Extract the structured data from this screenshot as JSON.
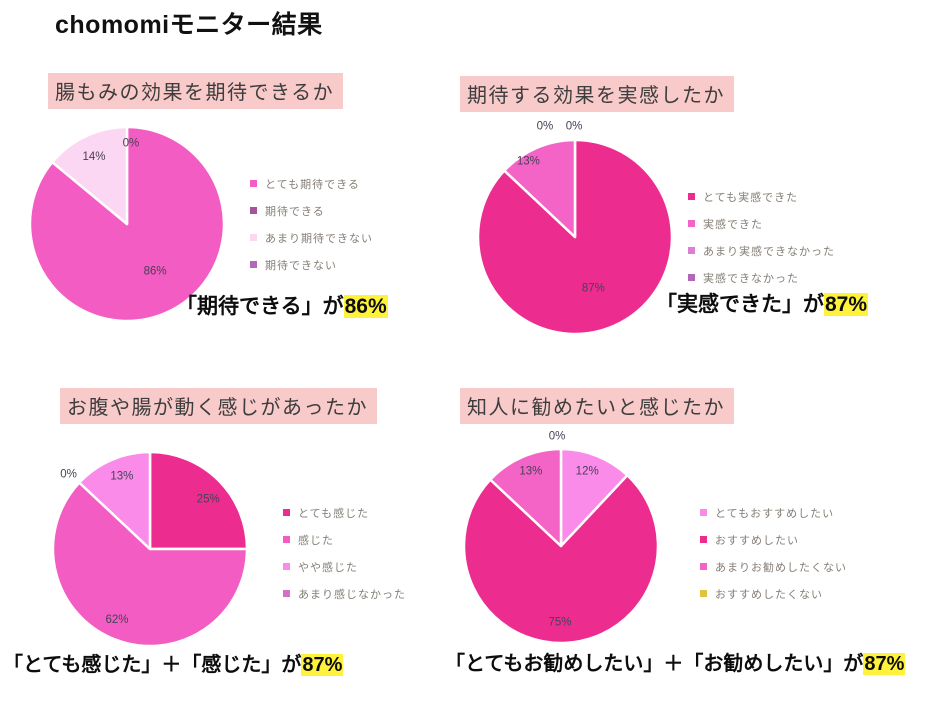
{
  "page": {
    "title": "chomomiモニター結果",
    "background": "#FFFFFF"
  },
  "colors": {
    "question_header_bg": "#F9CACA",
    "highlight_yellow": "#FFF23B",
    "value_label_text": "#474156",
    "legend_text": "#847E76"
  },
  "chart_data": [
    {
      "type": "pie",
      "title": "腸もみの効果を期待できるか",
      "categories": [
        "とても期待できる",
        "期待できる",
        "あまり期待できない",
        "期待できない"
      ],
      "values": [
        86,
        0,
        14,
        0
      ],
      "colors": [
        "#F25CC3",
        "#A6529C",
        "#FBD7F4",
        "#B168B8"
      ],
      "legend_position": "right",
      "value_labels": [
        {
          "text": "86%",
          "fx": 0.29,
          "fy": 0.48
        },
        {
          "text": "14%",
          "fx": -0.34,
          "fy": -0.7
        },
        {
          "text": "0%",
          "fx": 0.04,
          "fy": -0.84
        }
      ],
      "summary_prefix": "「期待できる」が",
      "summary_highlight": "86%"
    },
    {
      "type": "pie",
      "title": "期待する効果を実感したか",
      "categories": [
        "とても実感できた",
        "実感できた",
        "あまり実感できなかった",
        "実感できなかった"
      ],
      "values": [
        87,
        13,
        0,
        0
      ],
      "colors": [
        "#EC2D8F",
        "#F464C6",
        "#DC7FD2",
        "#B168B8"
      ],
      "legend_position": "right",
      "value_labels": [
        {
          "text": "87%",
          "fx": 0.19,
          "fy": 0.52
        },
        {
          "text": "13%",
          "fx": -0.48,
          "fy": -0.79
        },
        {
          "text": "0%",
          "fx": -0.31,
          "fy": -1.15
        },
        {
          "text": "0%",
          "fx": -0.01,
          "fy": -1.15
        }
      ],
      "summary_prefix": "「実感できた」が",
      "summary_highlight": "87%"
    },
    {
      "type": "pie",
      "title": "お腹や腸が動く感じがあったか",
      "categories": [
        "とても感じた",
        "感じた",
        "やや感じた",
        "あまり感じなかった"
      ],
      "values": [
        25,
        62,
        13,
        0
      ],
      "colors": [
        "#EC2D8F",
        "#F25CC3",
        "#FA8BE9",
        "#D26FC8"
      ],
      "legend_position": "right",
      "value_labels": [
        {
          "text": "25%",
          "fx": 0.6,
          "fy": -0.52
        },
        {
          "text": "62%",
          "fx": -0.34,
          "fy": 0.72
        },
        {
          "text": "13%",
          "fx": -0.29,
          "fy": -0.76
        },
        {
          "text": "0%",
          "fx": -0.84,
          "fy": -0.78
        }
      ],
      "summary_prefix": "「とても感じた」＋「感じた」が",
      "summary_highlight": "87%"
    },
    {
      "type": "pie",
      "title": "知人に勧めたいと感じたか",
      "categories": [
        "とてもおすすめしたい",
        "おすすめしたい",
        "あまりお勧めしたくない",
        "おすすめしたくない"
      ],
      "values": [
        12,
        75,
        13,
        0
      ],
      "colors": [
        "#FA8BE9",
        "#EC2D8F",
        "#F464C6",
        "#E2C23E"
      ],
      "legend_position": "right",
      "value_labels": [
        {
          "text": "75%",
          "fx": -0.01,
          "fy": 0.78
        },
        {
          "text": "12%",
          "fx": 0.27,
          "fy": -0.78
        },
        {
          "text": "13%",
          "fx": -0.31,
          "fy": -0.78
        },
        {
          "text": "0%",
          "fx": -0.04,
          "fy": -1.14
        }
      ],
      "summary_prefix": "「とてもお勧めしたい」＋「お勧めしたい」が",
      "summary_highlight": "87%"
    }
  ]
}
